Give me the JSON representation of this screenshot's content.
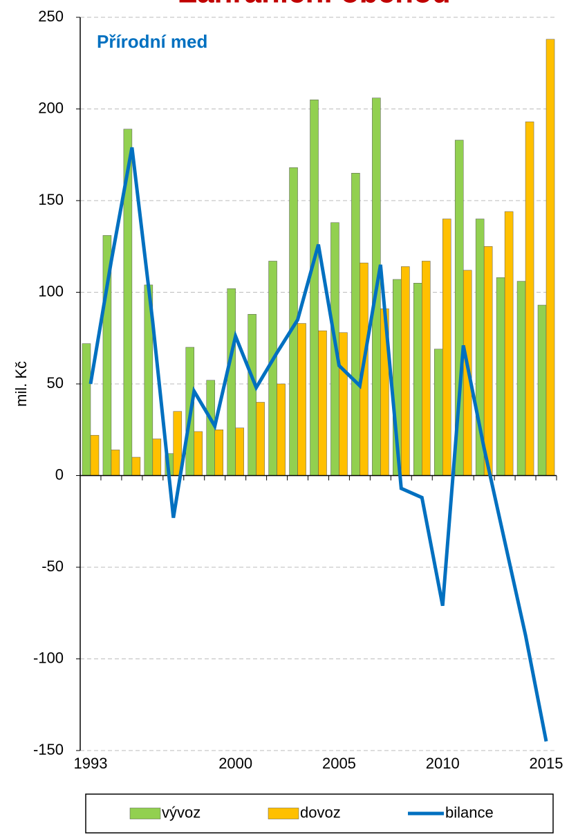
{
  "chart_data": {
    "type": "bar-line",
    "title": "Zahraniční obchod",
    "annotation": "Přírodní med",
    "y_label": "mil. Kč",
    "categories": [
      "1993",
      null,
      null,
      null,
      null,
      null,
      null,
      "2000",
      null,
      null,
      null,
      null,
      "2005",
      null,
      null,
      null,
      null,
      "2010",
      null,
      null,
      null,
      null,
      "2015"
    ],
    "series": [
      {
        "name": "vývoz",
        "kind": "bar",
        "color": "#92d050",
        "values": [
          72,
          131,
          189,
          104,
          12,
          70,
          52,
          102,
          88,
          117,
          168,
          205,
          138,
          165,
          206,
          107,
          105,
          69,
          183,
          140,
          108,
          106,
          93
        ]
      },
      {
        "name": "dovoz",
        "kind": "bar",
        "color": "#ffc000",
        "values": [
          22,
          14,
          10,
          20,
          35,
          24,
          25,
          26,
          40,
          50,
          83,
          79,
          78,
          116,
          91,
          114,
          117,
          140,
          112,
          125,
          144,
          193,
          238
        ]
      },
      {
        "name": "bilance",
        "kind": "line",
        "color": "#0070c0",
        "values": [
          50,
          117,
          179,
          84,
          -23,
          46,
          27,
          76,
          48,
          67,
          85,
          126,
          60,
          49,
          115,
          -7,
          -12,
          -71,
          71,
          15,
          -36,
          -87,
          -145
        ]
      }
    ],
    "ylim": [
      -150,
      250
    ],
    "yticks": [
      -150,
      -100,
      -50,
      0,
      50,
      100,
      150,
      200,
      250
    ],
    "grid": true,
    "legend": "bottom"
  }
}
